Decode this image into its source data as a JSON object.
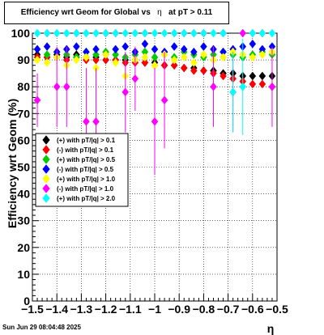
{
  "title": "Efficiency wrt Geom for Global vs",
  "title_eta": "η",
  "title_tail": "at pT > 0.11",
  "timestamp": "Sun Jun 29 08:04:48 2025",
  "chart_data": {
    "type": "scatter",
    "xlabel": "η",
    "ylabel": "Efficiency wrt Geom (%)",
    "xlim": [
      -1.5,
      -0.5
    ],
    "ylim": [
      0,
      100
    ],
    "x_ticks": [
      -1.5,
      -1.4,
      -1.3,
      -1.2,
      -1.1,
      -1,
      -0.9,
      -0.8,
      -0.7,
      -0.6,
      -0.5
    ],
    "x_tick_labels": [
      "−1.5",
      "−1.4",
      "−1.3",
      "−1.2",
      "−1.1",
      "−1",
      "−0.9",
      "−0.8",
      "−0.7",
      "−0.6",
      "−0.5"
    ],
    "y_ticks": [
      0,
      10,
      20,
      30,
      40,
      50,
      60,
      70,
      80,
      90,
      100
    ],
    "y_tick_labels": [
      "0",
      "10",
      "20",
      "30",
      "40",
      "50",
      "60",
      "70",
      "80",
      "90",
      "100"
    ],
    "legend_position": "left-middle",
    "series": [
      {
        "name": "(+) with pT/|q| > 0.1",
        "color": "#000000",
        "marker": "diamond",
        "x": [
          -1.48,
          -1.44,
          -1.4,
          -1.36,
          -1.32,
          -1.28,
          -1.24,
          -1.2,
          -1.16,
          -1.12,
          -1.08,
          -1.04,
          -1.0,
          -0.96,
          -0.92,
          -0.88,
          -0.84,
          -0.8,
          -0.76,
          -0.72,
          -0.68,
          -0.64,
          -0.6,
          -0.56,
          -0.52
        ],
        "y": [
          92,
          91,
          92,
          91,
          92,
          91,
          91,
          90,
          90,
          90,
          90,
          89,
          89,
          88,
          88,
          87,
          87,
          86,
          86,
          85,
          85,
          84,
          84,
          84,
          84
        ]
      },
      {
        "name": "(-) with pT/|q| > 0.1",
        "color": "#ff0000",
        "marker": "diamond",
        "x": [
          -1.48,
          -1.44,
          -1.4,
          -1.36,
          -1.32,
          -1.28,
          -1.24,
          -1.2,
          -1.16,
          -1.12,
          -1.08,
          -1.04,
          -1.0,
          -0.96,
          -0.92,
          -0.88,
          -0.84,
          -0.8,
          -0.76,
          -0.72,
          -0.68,
          -0.64,
          -0.6,
          -0.56,
          -0.52
        ],
        "y": [
          91,
          91,
          91,
          90,
          91,
          90,
          90,
          90,
          90,
          89,
          89,
          89,
          88,
          88,
          88,
          87,
          86,
          86,
          85,
          84,
          83,
          82,
          81,
          81,
          80
        ]
      },
      {
        "name": "(+) with pT/|q| > 0.5",
        "color": "#00cc00",
        "marker": "diamond",
        "x": [
          -1.48,
          -1.44,
          -1.4,
          -1.36,
          -1.32,
          -1.28,
          -1.24,
          -1.2,
          -1.16,
          -1.12,
          -1.08,
          -1.04,
          -1.0,
          -0.96,
          -0.92,
          -0.88,
          -0.84,
          -0.8,
          -0.76,
          -0.72,
          -0.68,
          -0.64,
          -0.6,
          -0.56,
          -0.52
        ],
        "y": [
          94,
          92,
          93,
          92,
          91,
          93,
          92,
          93,
          92,
          91,
          92,
          93,
          91,
          92,
          91,
          93,
          92,
          91,
          92,
          93,
          92,
          91,
          92,
          93,
          92
        ]
      },
      {
        "name": "(-) with pT/|q| > 0.5",
        "color": "#0000ff",
        "marker": "diamond",
        "x": [
          -1.48,
          -1.44,
          -1.4,
          -1.36,
          -1.32,
          -1.28,
          -1.24,
          -1.2,
          -1.16,
          -1.12,
          -1.08,
          -1.04,
          -1.0,
          -0.96,
          -0.92,
          -0.88,
          -0.84,
          -0.8,
          -0.76,
          -0.72,
          -0.68,
          -0.64,
          -0.6,
          -0.56,
          -0.52
        ],
        "y": [
          94,
          95,
          93,
          94,
          95,
          93,
          94,
          92,
          94,
          95,
          93,
          96,
          94,
          93,
          95,
          94,
          93,
          95,
          94,
          93,
          94,
          95,
          96,
          94,
          95
        ]
      },
      {
        "name": "(+) with pT/|q| > 1.0",
        "color": "#ffff00",
        "marker": "diamond",
        "x": [
          -1.48,
          -1.44,
          -1.4,
          -1.36,
          -1.32,
          -1.28,
          -1.24,
          -1.2,
          -1.16,
          -1.12,
          -1.08,
          -1.04,
          -1.0,
          -0.96,
          -0.92,
          -0.88,
          -0.84,
          -0.8,
          -0.76,
          -0.72,
          -0.68,
          -0.64,
          -0.6,
          -0.56,
          -0.52
        ],
        "y": [
          90,
          89,
          91,
          88,
          90,
          91,
          87,
          92,
          89,
          84,
          90,
          91,
          88,
          92,
          90,
          91,
          89,
          92,
          90,
          91,
          93,
          92,
          91,
          92,
          93
        ]
      },
      {
        "name": "(-) with pT/|q| > 1.0",
        "color": "#ff00ff",
        "marker": "diamond",
        "x": [
          -1.48,
          -1.44,
          -1.4,
          -1.36,
          -1.32,
          -1.28,
          -1.24,
          -1.2,
          -1.16,
          -1.12,
          -1.08,
          -1.04,
          -1.0,
          -0.96,
          -0.92,
          -0.88,
          -0.84,
          -0.8,
          -0.76,
          -0.72,
          -0.68,
          -0.64,
          -0.6,
          -0.56,
          -0.52
        ],
        "y": [
          75,
          100,
          80,
          80,
          100,
          67,
          67,
          100,
          100,
          78,
          83,
          100,
          67,
          75,
          100,
          100,
          100,
          100,
          80,
          100,
          78,
          100,
          100,
          100,
          80
        ],
        "err": [
          10,
          0,
          15,
          15,
          0,
          20,
          20,
          0,
          0,
          15,
          12,
          0,
          20,
          18,
          0,
          0,
          0,
          0,
          15,
          0,
          15,
          0,
          0,
          0,
          15
        ]
      },
      {
        "name": "(+) with pT/|q| > 2.0",
        "color": "#00ffff",
        "marker": "diamond",
        "x": [
          -1.48,
          -1.44,
          -1.4,
          -1.36,
          -1.32,
          -1.28,
          -1.24,
          -1.2,
          -1.16,
          -1.12,
          -1.08,
          -1.04,
          -1.0,
          -0.96,
          -0.92,
          -0.88,
          -0.84,
          -0.8,
          -0.76,
          -0.72,
          -0.68,
          -0.64,
          -0.6,
          -0.56,
          -0.52
        ],
        "y": [
          100,
          100,
          100,
          100,
          100,
          100,
          100,
          100,
          100,
          100,
          100,
          100,
          100,
          100,
          100,
          100,
          100,
          100,
          100,
          100,
          78,
          80,
          100,
          100,
          100
        ],
        "err": [
          0,
          0,
          0,
          0,
          0,
          0,
          0,
          0,
          0,
          0,
          0,
          0,
          0,
          0,
          0,
          0,
          0,
          0,
          0,
          0,
          15,
          18,
          0,
          0,
          0
        ]
      }
    ]
  }
}
